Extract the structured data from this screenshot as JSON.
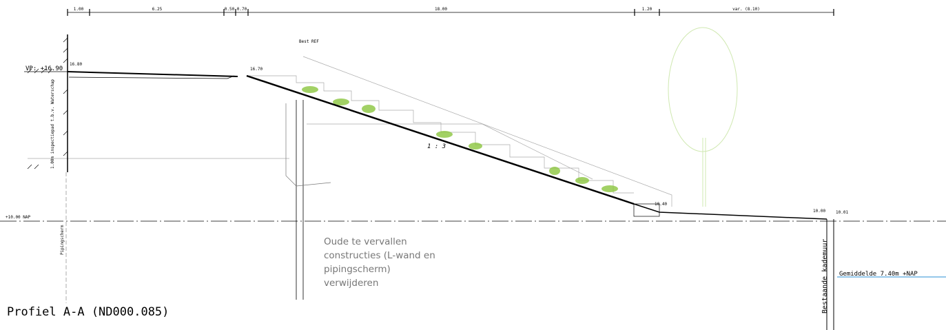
{
  "dimensions": [
    "1.00",
    "6.25",
    "0.50",
    "0.70",
    "18.00",
    "1.20",
    "var. (8.10)"
  ],
  "levels": {
    "vp": "VP: +16.90",
    "left_top": "16.80",
    "slope_top": "16.70",
    "reference": "Best REF",
    "nap": "+10.00 NAP",
    "slope_foot": "10.40",
    "quay_left": "10.00",
    "quay_right": "10.01"
  },
  "slope_ratio": "1 : 3",
  "vertical_labels": {
    "inspection_path": "1.00m inspectiepad t.b.v. Waterschap",
    "piping": "Pipingscherm",
    "quay_wall": "Bestaande kademuur"
  },
  "annotation": {
    "lines": [
      "Oude te vervallen",
      "constructies (L-wand en",
      "pipingscherm)",
      "verwijderen"
    ]
  },
  "water_level": "Gemiddelde 7.40m +NAP",
  "title": "Profiel A-A (ND000.085)"
}
